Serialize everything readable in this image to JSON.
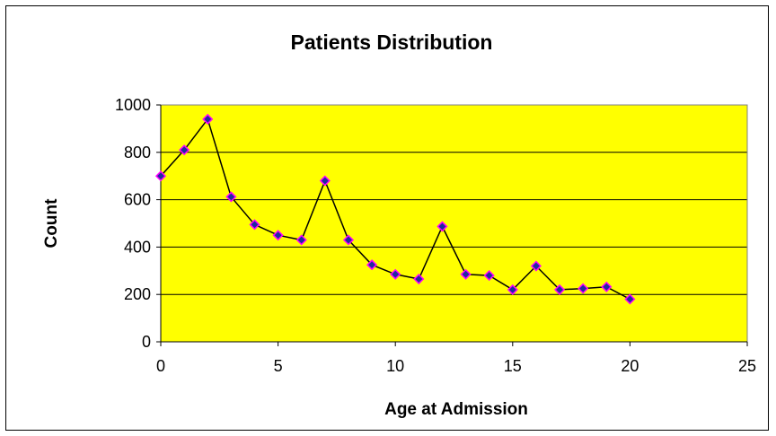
{
  "chart_data": {
    "type": "line",
    "title": "Patients Distribution",
    "xlabel": "Age at Admission",
    "ylabel": "Count",
    "xlim": [
      0,
      25
    ],
    "ylim": [
      0,
      1000
    ],
    "xticks": [
      0,
      5,
      10,
      15,
      20,
      25
    ],
    "yticks": [
      0,
      200,
      400,
      600,
      800,
      1000
    ],
    "grid": "horizontal",
    "legend": "none",
    "series": [
      {
        "x": [
          0,
          1,
          2,
          3,
          4,
          5,
          6,
          7,
          8,
          9,
          10,
          11,
          12,
          13,
          14,
          15,
          16,
          17,
          18,
          19,
          20
        ],
        "values": [
          700,
          810,
          940,
          612,
          495,
          450,
          430,
          680,
          430,
          325,
          285,
          265,
          487,
          285,
          280,
          220,
          320,
          220,
          225,
          232,
          180
        ]
      }
    ]
  },
  "colors": {
    "plot_background": "#ffff00",
    "gridline": "#000000",
    "line": "#000000",
    "marker_fill": "#1f2a9e",
    "marker_border": "#ff00ff"
  }
}
